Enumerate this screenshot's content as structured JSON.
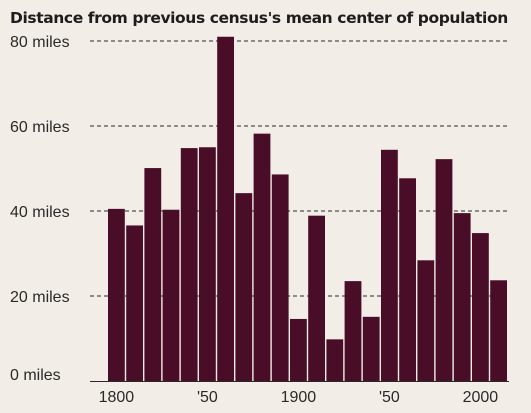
{
  "chart_data": {
    "type": "bar",
    "title": "Distance from previous census's mean center of population",
    "xlabel": "",
    "ylabel": "",
    "ylim": [
      0,
      80
    ],
    "y_ticks": [
      {
        "value": 0,
        "label": "0 miles"
      },
      {
        "value": 20,
        "label": "20 miles"
      },
      {
        "value": 40,
        "label": "40 miles"
      },
      {
        "value": 60,
        "label": "60 miles"
      },
      {
        "value": 80,
        "label": "80 miles"
      }
    ],
    "x_ticks": [
      {
        "year": 1800,
        "label": "1800"
      },
      {
        "year": 1850,
        "label": "'50"
      },
      {
        "year": 1900,
        "label": "1900"
      },
      {
        "year": 1950,
        "label": "'50"
      },
      {
        "year": 2000,
        "label": "2000"
      }
    ],
    "gridlines": "dashed",
    "categories": [
      1800,
      1810,
      1820,
      1830,
      1840,
      1850,
      1860,
      1870,
      1880,
      1890,
      1900,
      1910,
      1920,
      1930,
      1940,
      1950,
      1960,
      1970,
      1980,
      1990,
      2000,
      2010
    ],
    "values": [
      40.5,
      36.6,
      50.1,
      40.3,
      54.8,
      55.0,
      81.0,
      44.2,
      58.2,
      48.6,
      14.6,
      38.9,
      9.8,
      23.5,
      15.1,
      54.4,
      47.7,
      28.4,
      52.2,
      39.5,
      34.8,
      23.7
    ]
  },
  "colors": {
    "bar": "#4a0d28",
    "background": "#f2ede6",
    "gridline": "#2a2a2a",
    "text": "#1d1d1d"
  }
}
